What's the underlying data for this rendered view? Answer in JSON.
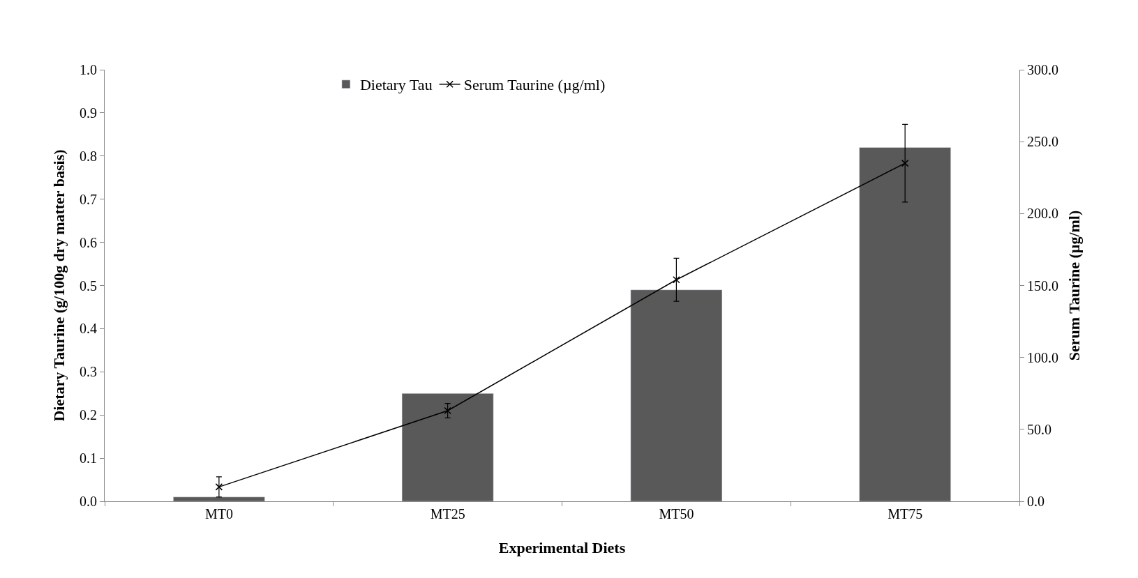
{
  "chart_data": {
    "type": "bar",
    "xlabel": "Experimental Diets",
    "ylabel": "Dietary Taurine (g/100g dry matter basis)",
    "y2label": "Serum Taurine (µg/ml)",
    "categories": [
      "MT0",
      "MT25",
      "MT50",
      "MT75"
    ],
    "series": [
      {
        "name": "Dietary Tau",
        "color": "#595959",
        "values": [
          0.01,
          0.25,
          0.49,
          0.82
        ]
      },
      {
        "name": "Serum Taurine (µg/ml)",
        "type": "line",
        "axis": "y2",
        "color": "#000000",
        "marker": "cross",
        "line_style": "solid",
        "values": [
          10,
          63,
          154,
          235
        ],
        "errors": [
          7,
          5,
          15,
          27
        ]
      }
    ],
    "ylim": [
      0,
      1
    ],
    "yticks": [
      {
        "value": 0,
        "label": "0.0"
      },
      {
        "value": 0.1,
        "label": "0.1"
      },
      {
        "value": 0.2,
        "label": "0.2"
      },
      {
        "value": 0.3,
        "label": "0.3"
      },
      {
        "value": 0.4,
        "label": "0.4"
      },
      {
        "value": 0.5,
        "label": "0.5"
      },
      {
        "value": 0.6,
        "label": "0.6"
      },
      {
        "value": 0.7,
        "label": "0.7"
      },
      {
        "value": 0.8,
        "label": "0.8"
      },
      {
        "value": 0.9,
        "label": "0.9"
      },
      {
        "value": 1,
        "label": "1.0"
      }
    ],
    "y2lim": [
      0,
      300
    ],
    "y2ticks": [
      {
        "value": 0,
        "label": "0.0"
      },
      {
        "value": 50,
        "label": "50.0"
      },
      {
        "value": 100,
        "label": "100.0"
      },
      {
        "value": 150,
        "label": "150.0"
      },
      {
        "value": 200,
        "label": "200.0"
      },
      {
        "value": 250,
        "label": "250.0"
      },
      {
        "value": 300,
        "label": "300.0"
      }
    ],
    "legend": "top"
  }
}
